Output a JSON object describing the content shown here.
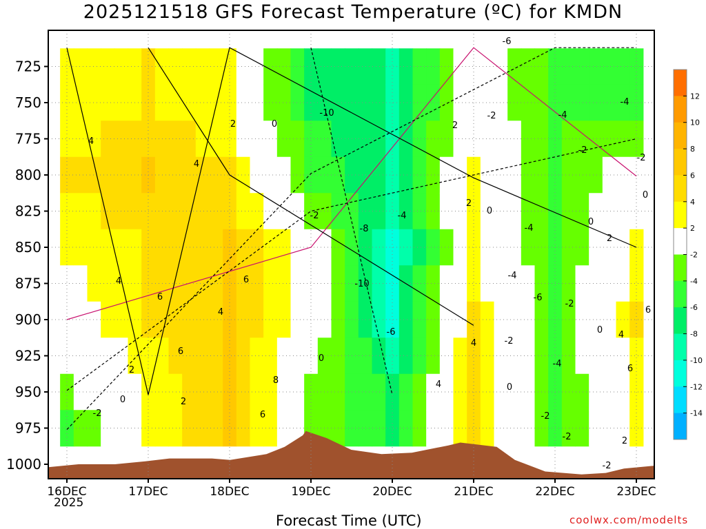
{
  "chart_data": {
    "type": "heatmap",
    "title": "2025121518 GFS Forecast Temperature (ºC) for KMDN",
    "xlabel": "Forecast Time (UTC)",
    "ylabel": "",
    "x_ticks": [
      "16DEC",
      "17DEC",
      "18DEC",
      "19DEC",
      "20DEC",
      "21DEC",
      "22DEC",
      "23DEC"
    ],
    "x_sublabel": "2025",
    "y_ticks": [
      725,
      750,
      775,
      800,
      825,
      850,
      875,
      900,
      925,
      950,
      975,
      1000
    ],
    "ylim": [
      1010,
      700
    ],
    "grid": true,
    "colorbar": {
      "labels": [
        "12",
        "10",
        "8",
        "6",
        "4",
        "2",
        "-2",
        "-4",
        "-6",
        "-8",
        "-10",
        "-12",
        "-14"
      ],
      "colors": [
        "#ff6e00",
        "#ff9a00",
        "#ffb400",
        "#ffc800",
        "#ffdc00",
        "#ffff00",
        "#ffffff",
        "#66ff00",
        "#33ff33",
        "#00ee66",
        "#00ffaa",
        "#00ffdd",
        "#00ddff",
        "#00b0ff"
      ]
    },
    "series": [
      {
        "x": "16DEC",
        "temps": {
          "750": 2,
          "800": 4,
          "850": 2,
          "900": 0,
          "950": -2,
          "975": -4
        }
      },
      {
        "x": "17DEC",
        "temps": {
          "750": 4,
          "800": 6,
          "850": 4,
          "900": 4,
          "950": 2
        }
      },
      {
        "x": "18DEC",
        "temps": {
          "750": 2,
          "800": 4,
          "850": 6,
          "900": 6,
          "950": 6
        }
      },
      {
        "x": "19DEC",
        "temps": {
          "750": -6,
          "800": -4,
          "850": 0,
          "900": 0,
          "950": -2
        }
      },
      {
        "x": "20DEC",
        "temps": {
          "750": -8,
          "800": -8,
          "850": -10,
          "900": -10,
          "950": -6
        }
      },
      {
        "x": "21DEC",
        "temps": {
          "750": 0,
          "800": 2,
          "850": 2,
          "900": 4,
          "950": 4
        }
      },
      {
        "x": "22DEC",
        "temps": {
          "750": -4,
          "800": -4,
          "850": -4,
          "900": -4,
          "950": -4
        }
      },
      {
        "x": "23DEC",
        "temps": {
          "750": -4,
          "800": 0,
          "850": 2,
          "900": 4,
          "950": 2
        }
      }
    ],
    "annotations": [
      "4",
      "4",
      "4",
      "6",
      "2",
      "0",
      "-2",
      "-4",
      "6",
      "4",
      "2",
      "6",
      "8",
      "6",
      "2",
      "0",
      "-2",
      "-10",
      "-8",
      "-10",
      "-6",
      "0",
      "2",
      "0",
      "-2",
      "2",
      "4",
      "4",
      "-2",
      "0",
      "-6",
      "-2",
      "-4",
      "-4",
      "-6",
      "-2",
      "-4",
      "-2",
      "-4",
      "-2",
      "0",
      "-4",
      "0",
      "2",
      "4",
      "6",
      "6",
      "2",
      "-2",
      "0",
      "-2"
    ]
  },
  "credit": "coolwx.com/modelts"
}
